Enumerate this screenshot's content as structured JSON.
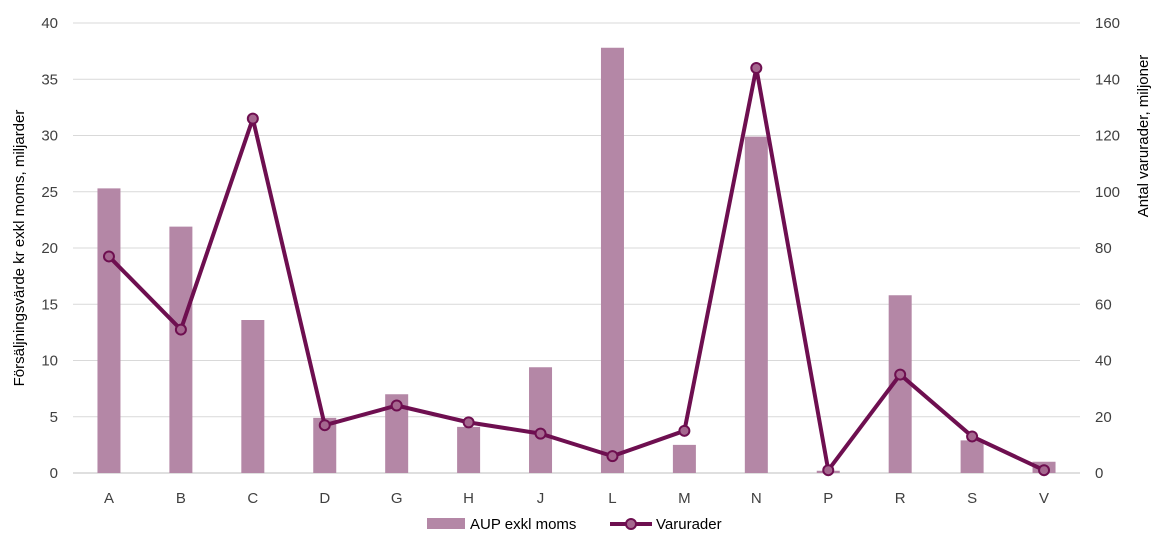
{
  "chart_data": {
    "type": "bar",
    "categories": [
      "A",
      "B",
      "C",
      "D",
      "G",
      "H",
      "J",
      "L",
      "M",
      "N",
      "P",
      "R",
      "S",
      "V"
    ],
    "series": [
      {
        "name": "AUP exkl moms",
        "type": "bar",
        "axis": "left",
        "values": [
          25.3,
          21.9,
          13.6,
          4.9,
          7.0,
          4.1,
          9.4,
          37.8,
          2.5,
          29.9,
          0.2,
          15.8,
          2.9,
          1.0
        ]
      },
      {
        "name": "Varurader",
        "type": "line",
        "axis": "right",
        "values": [
          77,
          51,
          126,
          17,
          24,
          18,
          14,
          6,
          15,
          144,
          1,
          35,
          13,
          1
        ]
      }
    ],
    "ylabel": "Försäljningsvärde kr exkl moms, miljarder",
    "ylabel_right": "Antal varurader, miljoner",
    "ylim": [
      0,
      40
    ],
    "ylim_right": [
      0,
      160
    ],
    "yticks": [
      "0",
      "5",
      "10",
      "15",
      "20",
      "25",
      "30",
      "35",
      "40"
    ],
    "yticks_right": [
      "0",
      "20",
      "40",
      "60",
      "80",
      "100",
      "120",
      "140",
      "160"
    ],
    "grid": true,
    "legend_position": "bottom",
    "colors": {
      "bar": "#b487a6",
      "line": "#6e0f50",
      "grid": "#d9d9d9"
    }
  }
}
